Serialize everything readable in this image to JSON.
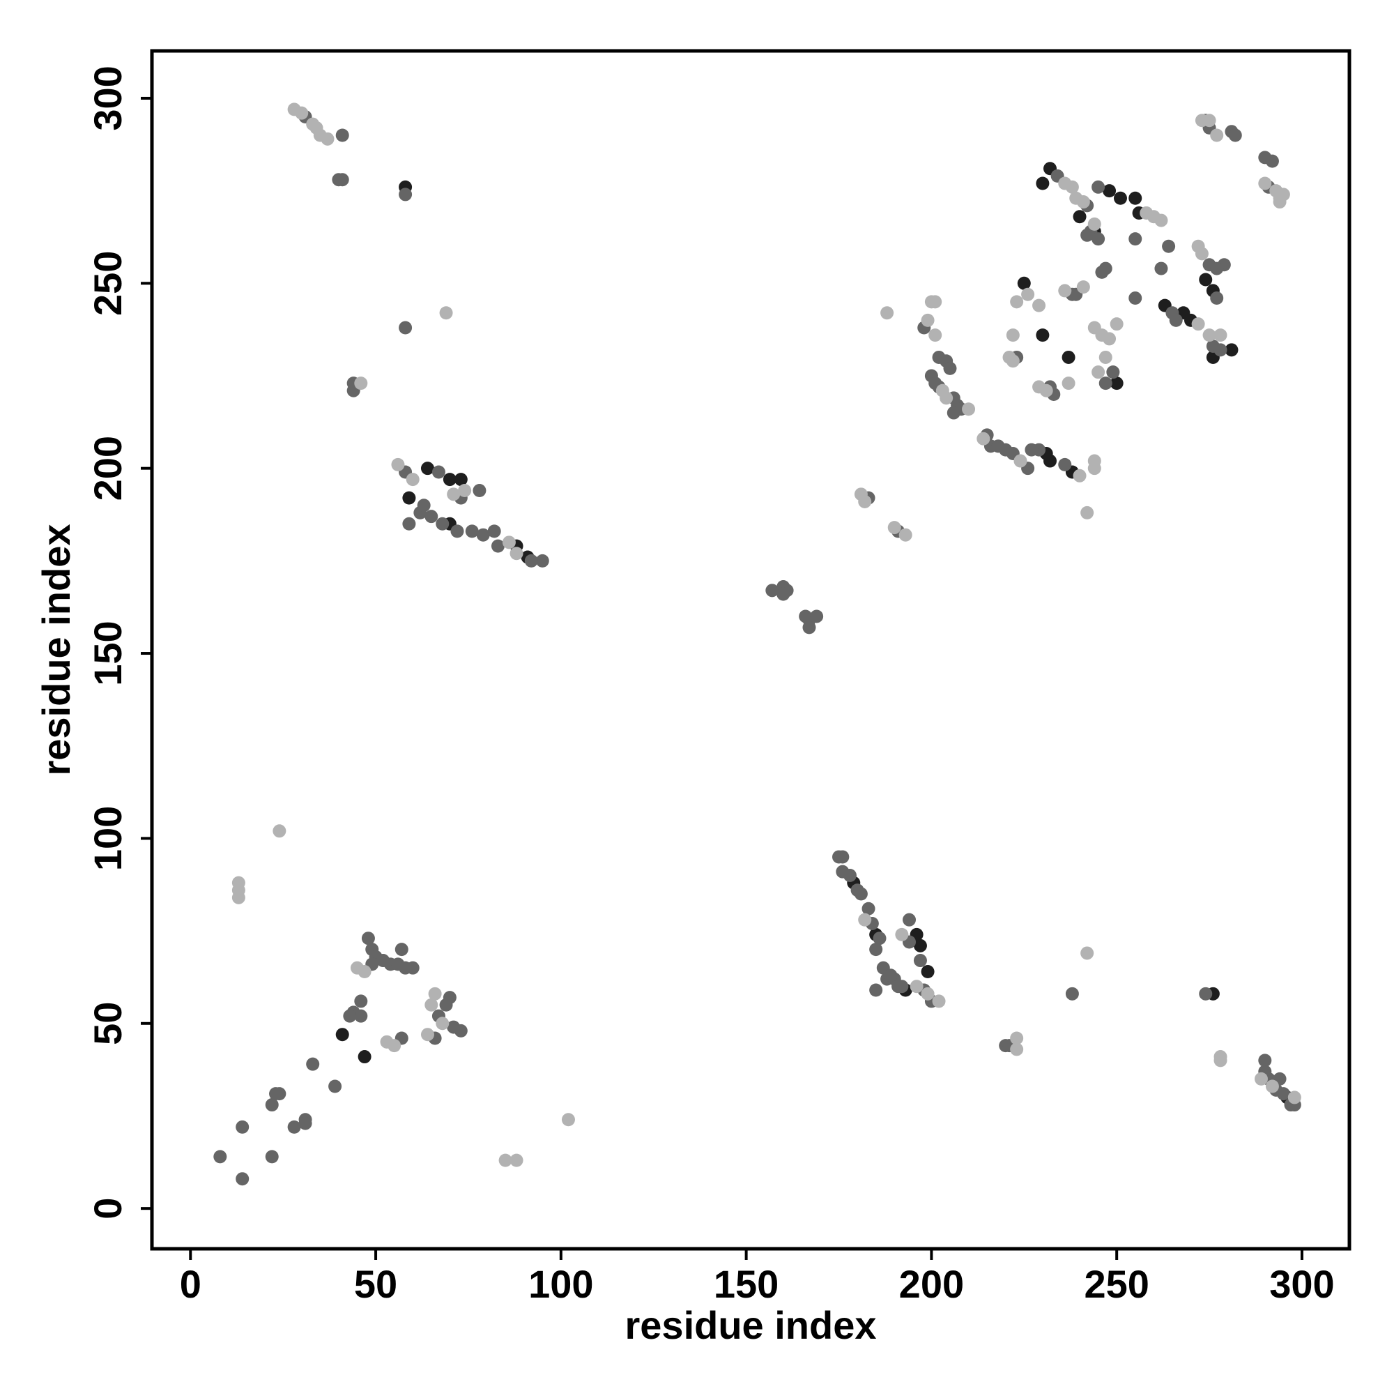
{
  "chart_data": {
    "type": "scatter",
    "x_label": "residue index",
    "y_label": "residue index",
    "xlim": [
      -10.4,
      312.8
    ],
    "ylim": [
      -10.9,
      312.8
    ],
    "xticks": [
      0,
      50,
      100,
      150,
      200,
      250,
      300
    ],
    "yticks": [
      0,
      50,
      100,
      150,
      200,
      250,
      300
    ],
    "grid": false,
    "series": [
      {
        "color": "#1e1e1e",
        "x": [
          47,
          41,
          64,
          70,
          73,
          88,
          91,
          70,
          59,
          58,
          179,
          185,
          197,
          199,
          196,
          193,
          230,
          237,
          225,
          232,
          230,
          251,
          255,
          248,
          244,
          240,
          250,
          232,
          231,
          238,
          256,
          263,
          268,
          274,
          276,
          276,
          281,
          276,
          296,
          270
        ],
        "y": [
          41,
          47,
          200,
          197,
          197,
          179,
          176,
          185,
          192,
          276,
          88,
          74,
          71,
          64,
          74,
          59,
          236,
          230,
          250,
          281,
          277,
          273,
          273,
          275,
          264,
          268,
          223,
          202,
          204,
          199,
          269,
          244,
          242,
          251,
          248,
          230,
          232,
          58,
          30,
          240
        ]
      },
      {
        "color": "#656565",
        "x": [
          8,
          14,
          14,
          22,
          22,
          24,
          23,
          28,
          31,
          31,
          33,
          39,
          44,
          46,
          46,
          48,
          49,
          50,
          52,
          54,
          56,
          58,
          57,
          60,
          57,
          67,
          69,
          70,
          71,
          73,
          66,
          43,
          49,
          31,
          40,
          41,
          41,
          58,
          58,
          44,
          44,
          58,
          67,
          62,
          65,
          63,
          59,
          73,
          72,
          76,
          79,
          82,
          83,
          95,
          92,
          68,
          78,
          157,
          160,
          161,
          160,
          166,
          167,
          169,
          167,
          183,
          191,
          175,
          176,
          176,
          178,
          180,
          181,
          183,
          184,
          186,
          187,
          188,
          190,
          191,
          192,
          185,
          185,
          194,
          194,
          197,
          198,
          200,
          189,
          220,
          221,
          238,
          274,
          290,
          290,
          291,
          293,
          294,
          295,
          297,
          298,
          198,
          202,
          204,
          205,
          200,
          201,
          202,
          206,
          207,
          208,
          206,
          215,
          216,
          218,
          220,
          222,
          226,
          229,
          227,
          223,
          232,
          233,
          238,
          239,
          234,
          242,
          243,
          245,
          242,
          246,
          247,
          247,
          249,
          236,
          255,
          262,
          265,
          266,
          274,
          276,
          275,
          277,
          279,
          277,
          278,
          281,
          282,
          290,
          292,
          291,
          275,
          264,
          245,
          255
        ],
        "y": [
          14,
          8,
          22,
          14,
          28,
          31,
          31,
          22,
          24,
          23,
          39,
          33,
          53,
          56,
          52,
          73,
          70,
          68,
          67,
          66,
          66,
          65,
          70,
          65,
          46,
          52,
          55,
          57,
          49,
          48,
          46,
          52,
          66,
          295,
          278,
          278,
          290,
          274,
          238,
          221,
          223,
          199,
          199,
          188,
          187,
          190,
          185,
          192,
          183,
          183,
          182,
          183,
          179,
          175,
          175,
          185,
          194,
          167,
          168,
          167,
          166,
          160,
          159,
          160,
          157,
          192,
          183,
          95,
          95,
          91,
          90,
          86,
          85,
          81,
          77,
          73,
          65,
          62,
          62,
          60,
          60,
          59,
          70,
          78,
          72,
          67,
          59,
          56,
          63,
          44,
          44,
          58,
          58,
          40,
          37,
          35,
          32,
          35,
          31,
          28,
          28,
          238,
          230,
          229,
          227,
          225,
          223,
          222,
          219,
          217,
          216,
          215,
          209,
          206,
          206,
          205,
          204,
          200,
          205,
          205,
          230,
          222,
          220,
          247,
          247,
          279,
          271,
          264,
          262,
          263,
          253,
          254,
          223,
          226,
          201,
          246,
          254,
          242,
          240,
          294,
          233,
          255,
          246,
          255,
          254,
          232,
          291,
          290,
          284,
          283,
          276,
          292,
          260,
          276,
          262
        ]
      },
      {
        "color": "#b2b2b2",
        "x": [
          13,
          13,
          13,
          24,
          85,
          88,
          102,
          69,
          46,
          28,
          30,
          33,
          34,
          35,
          37,
          60,
          56,
          74,
          71,
          86,
          88,
          188,
          242,
          242,
          200,
          201,
          199,
          201,
          222,
          223,
          229,
          241,
          236,
          237,
          240,
          244,
          244,
          273,
          275,
          277,
          290,
          293,
          294,
          295,
          294,
          223,
          223,
          278,
          278,
          298,
          289,
          292,
          45,
          47,
          53,
          55,
          66,
          68,
          64,
          65,
          202,
          199,
          196,
          192,
          182,
          190,
          193,
          181,
          182,
          222,
          221,
          229,
          231,
          246,
          248,
          250,
          244,
          247,
          245,
          239,
          241,
          238,
          236,
          258,
          260,
          262,
          275,
          272,
          278,
          272,
          273,
          226,
          214,
          224,
          210,
          203,
          204,
          244
        ],
        "y": [
          88,
          86,
          84,
          102,
          13,
          13,
          24,
          242,
          223,
          297,
          296,
          293,
          292,
          290,
          289,
          197,
          201,
          194,
          193,
          180,
          177,
          242,
          188,
          69,
          245,
          245,
          240,
          236,
          236,
          245,
          244,
          249,
          248,
          223,
          198,
          202,
          200,
          294,
          294,
          290,
          277,
          275,
          273,
          274,
          272,
          46,
          43,
          41,
          40,
          30,
          35,
          33,
          65,
          64,
          45,
          44,
          58,
          50,
          47,
          55,
          56,
          58,
          60,
          74,
          78,
          184,
          182,
          193,
          191,
          229,
          230,
          222,
          221,
          236,
          235,
          239,
          238,
          230,
          226,
          273,
          272,
          276,
          277,
          269,
          268,
          267,
          236,
          239,
          236,
          260,
          258,
          247,
          208,
          202,
          216,
          221,
          219,
          266
        ]
      }
    ]
  }
}
